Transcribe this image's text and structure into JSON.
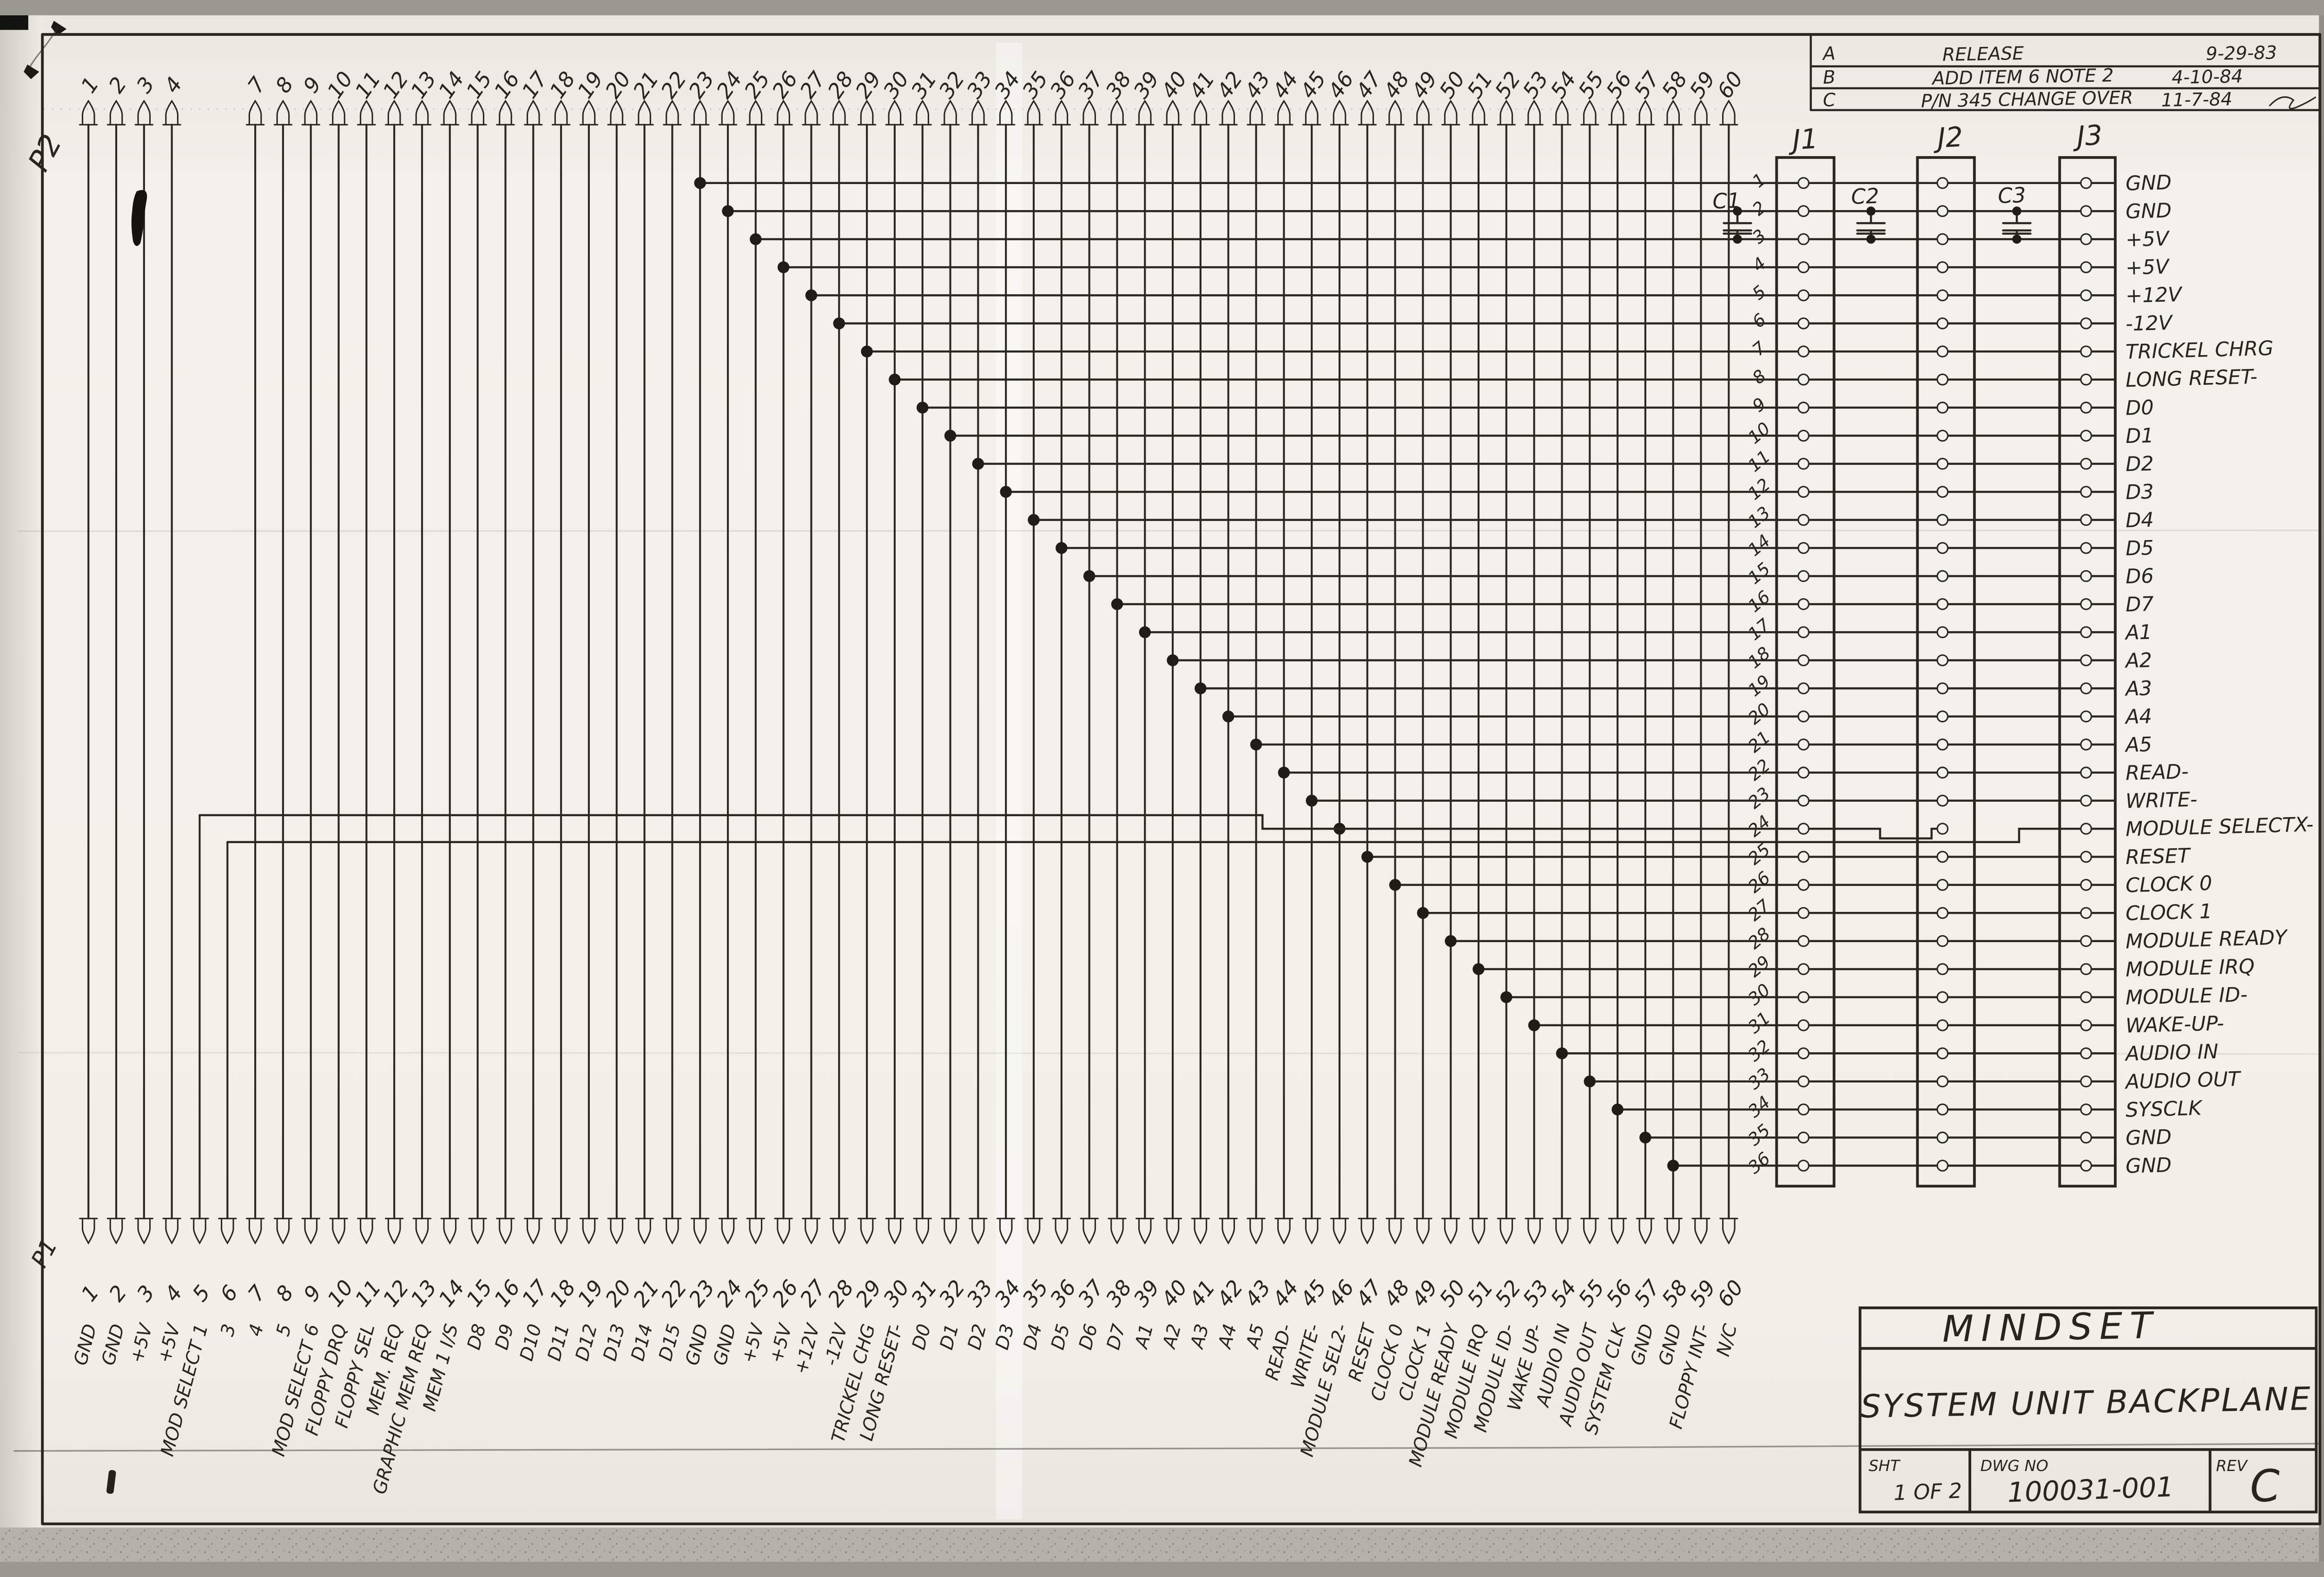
{
  "colors": {
    "ink": "#2a2620",
    "paper": "#f2f0ea",
    "scan_band": "#b7b4ac"
  },
  "p2": {
    "label": "P2",
    "pins": [
      1,
      2,
      3,
      4,
      7,
      8,
      9,
      10,
      11,
      12,
      13,
      14,
      15,
      16,
      17,
      18,
      19,
      20,
      21,
      22,
      23,
      24,
      25,
      26,
      27,
      28,
      29,
      30,
      31,
      32,
      33,
      34,
      35,
      36,
      37,
      38,
      39,
      40,
      41,
      42,
      43,
      44,
      45,
      46,
      47,
      48,
      49,
      50,
      51,
      52,
      53,
      54,
      55,
      56,
      57,
      58,
      59,
      60
    ]
  },
  "p1": {
    "label": "P1",
    "pins": [
      {
        "n": 1,
        "label": "GND"
      },
      {
        "n": 2,
        "label": "GND"
      },
      {
        "n": 3,
        "label": "+5V"
      },
      {
        "n": 4,
        "label": "+5V"
      },
      {
        "n": 5,
        "label": "MOD SELECT 1"
      },
      {
        "n": 6,
        "label": "3"
      },
      {
        "n": 7,
        "label": "4"
      },
      {
        "n": 8,
        "label": "5"
      },
      {
        "n": 9,
        "label": "MOD SELECT 6"
      },
      {
        "n": 10,
        "label": "FLOPPY DRQ"
      },
      {
        "n": 11,
        "label": "FLOPPY SEL"
      },
      {
        "n": 12,
        "label": "MEM. REQ"
      },
      {
        "n": 13,
        "label": "GRAPHIC MEM REQ"
      },
      {
        "n": 14,
        "label": "MEM 1 I/S"
      },
      {
        "n": 15,
        "label": "D8"
      },
      {
        "n": 16,
        "label": "D9"
      },
      {
        "n": 17,
        "label": "D10"
      },
      {
        "n": 18,
        "label": "D11"
      },
      {
        "n": 19,
        "label": "D12"
      },
      {
        "n": 20,
        "label": "D13"
      },
      {
        "n": 21,
        "label": "D14"
      },
      {
        "n": 22,
        "label": "D15"
      },
      {
        "n": 23,
        "label": "GND"
      },
      {
        "n": 24,
        "label": "GND"
      },
      {
        "n": 25,
        "label": "+5V"
      },
      {
        "n": 26,
        "label": "+5V"
      },
      {
        "n": 27,
        "label": "+12V"
      },
      {
        "n": 28,
        "label": "-12V"
      },
      {
        "n": 29,
        "label": "TRICKEL CHG"
      },
      {
        "n": 30,
        "label": "LONG RESET-"
      },
      {
        "n": 31,
        "label": "D0"
      },
      {
        "n": 32,
        "label": "D1"
      },
      {
        "n": 33,
        "label": "D2"
      },
      {
        "n": 34,
        "label": "D3"
      },
      {
        "n": 35,
        "label": "D4"
      },
      {
        "n": 36,
        "label": "D5"
      },
      {
        "n": 37,
        "label": "D6"
      },
      {
        "n": 38,
        "label": "D7"
      },
      {
        "n": 39,
        "label": "A1"
      },
      {
        "n": 40,
        "label": "A2"
      },
      {
        "n": 41,
        "label": "A3"
      },
      {
        "n": 42,
        "label": "A4"
      },
      {
        "n": 43,
        "label": "A5"
      },
      {
        "n": 44,
        "label": "READ-"
      },
      {
        "n": 45,
        "label": "WRITE-"
      },
      {
        "n": 46,
        "label": "MODULE SEL2-"
      },
      {
        "n": 47,
        "label": "RESET"
      },
      {
        "n": 48,
        "label": "CLOCK 0"
      },
      {
        "n": 49,
        "label": "CLOCK 1"
      },
      {
        "n": 50,
        "label": "MODULE READY"
      },
      {
        "n": 51,
        "label": "MODULE IRQ"
      },
      {
        "n": 52,
        "label": "MODULE ID-"
      },
      {
        "n": 53,
        "label": "WAKE UP-"
      },
      {
        "n": 54,
        "label": "AUDIO IN"
      },
      {
        "n": 55,
        "label": "AUDIO OUT"
      },
      {
        "n": 56,
        "label": "SYSTEM CLK"
      },
      {
        "n": 57,
        "label": "GND"
      },
      {
        "n": 58,
        "label": "GND"
      },
      {
        "n": 59,
        "label": "FLOPPY INT-"
      },
      {
        "n": 60,
        "label": "N/C"
      }
    ]
  },
  "slots": {
    "names": [
      "J1",
      "J2",
      "J3"
    ],
    "rows": [
      {
        "n": 1,
        "signal": "GND"
      },
      {
        "n": 2,
        "signal": "GND"
      },
      {
        "n": 3,
        "signal": "+5V"
      },
      {
        "n": 4,
        "signal": "+5V"
      },
      {
        "n": 5,
        "signal": "+12V"
      },
      {
        "n": 6,
        "signal": "-12V"
      },
      {
        "n": 7,
        "signal": "TRICKEL CHRG"
      },
      {
        "n": 8,
        "signal": "LONG RESET-"
      },
      {
        "n": 9,
        "signal": "D0"
      },
      {
        "n": 10,
        "signal": "D1"
      },
      {
        "n": 11,
        "signal": "D2"
      },
      {
        "n": 12,
        "signal": "D3"
      },
      {
        "n": 13,
        "signal": "D4"
      },
      {
        "n": 14,
        "signal": "D5"
      },
      {
        "n": 15,
        "signal": "D6"
      },
      {
        "n": 16,
        "signal": "D7"
      },
      {
        "n": 17,
        "signal": "A1"
      },
      {
        "n": 18,
        "signal": "A2"
      },
      {
        "n": 19,
        "signal": "A3"
      },
      {
        "n": 20,
        "signal": "A4"
      },
      {
        "n": 21,
        "signal": "A5"
      },
      {
        "n": 22,
        "signal": "READ-"
      },
      {
        "n": 23,
        "signal": "WRITE-"
      },
      {
        "n": 24,
        "signal": "MODULE SELECTX-"
      },
      {
        "n": 25,
        "signal": "RESET"
      },
      {
        "n": 26,
        "signal": "CLOCK 0"
      },
      {
        "n": 27,
        "signal": "CLOCK 1"
      },
      {
        "n": 28,
        "signal": "MODULE READY"
      },
      {
        "n": 29,
        "signal": "MODULE IRQ"
      },
      {
        "n": 30,
        "signal": "MODULE ID-"
      },
      {
        "n": 31,
        "signal": "WAKE-UP-"
      },
      {
        "n": 32,
        "signal": "AUDIO IN"
      },
      {
        "n": 33,
        "signal": "AUDIO OUT"
      },
      {
        "n": 34,
        "signal": "SYSCLK"
      },
      {
        "n": 35,
        "signal": "GND"
      },
      {
        "n": 36,
        "signal": "GND"
      }
    ]
  },
  "capacitors": [
    "C1",
    "C2",
    "C3"
  ],
  "revision_table": [
    {
      "rev": "A",
      "desc": "RELEASE",
      "date": "9-29-83"
    },
    {
      "rev": "B",
      "desc": "ADD ITEM 6  NOTE 2",
      "date": "4-10-84"
    },
    {
      "rev": "C",
      "desc": "P/N 345 CHANGE OVER",
      "date": "11-7-84"
    }
  ],
  "title_block": {
    "company": "MINDSET",
    "title": "SYSTEM UNIT BACKPLANE",
    "sht_label": "SHT",
    "sht_value": "1 OF 2",
    "dwg_label": "DWG NO",
    "dwg_value": "100031-001",
    "rev_label": "REV",
    "rev_value": "C"
  }
}
